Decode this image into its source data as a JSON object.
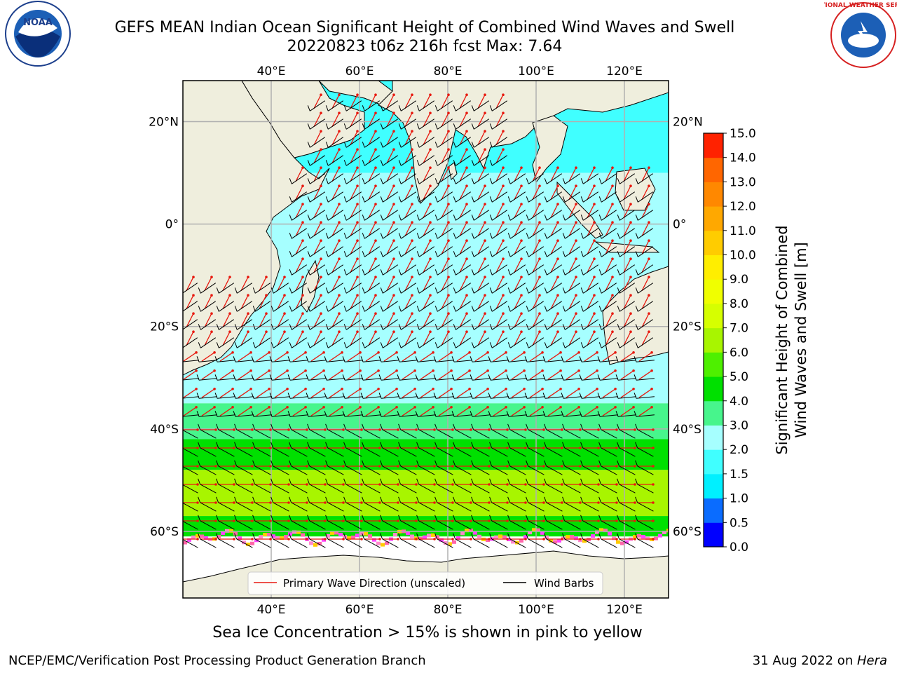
{
  "header": {
    "title_line1": "GEFS MEAN Indian Ocean Significant Height of Combined Wind Waves and Swell",
    "title_line2": "20220823 t06z 216h fcst   Max: 7.64"
  },
  "logos": {
    "left": {
      "icon": "noaa-logo-icon",
      "text": "NOAA",
      "ring_text": "NATIONAL OCEANIC AND ATMOSPHERIC ADMINISTRATION · U.S. DEPARTMENT OF COMMERCE"
    },
    "right": {
      "icon": "nws-logo-icon",
      "ring_text": "NATIONAL WEATHER SERVICE"
    }
  },
  "map": {
    "lon_range": [
      20,
      130
    ],
    "lat_range": [
      -73,
      28
    ],
    "lon_ticks": [
      {
        "value": 40,
        "label": "40°E"
      },
      {
        "value": 60,
        "label": "60°E"
      },
      {
        "value": 80,
        "label": "80°E"
      },
      {
        "value": 100,
        "label": "100°E"
      },
      {
        "value": 120,
        "label": "120°E"
      }
    ],
    "lat_ticks": [
      {
        "value": 20,
        "label": "20°N"
      },
      {
        "value": 0,
        "label": "0°"
      },
      {
        "value": -20,
        "label": "20°S"
      },
      {
        "value": -40,
        "label": "40°S"
      },
      {
        "value": -60,
        "label": "60°S"
      }
    ],
    "colors": {
      "land": "#efeedd",
      "grid": "#b0b0b0",
      "arrow": "#e8190f",
      "barb": "#000000"
    },
    "wave_height_bands_m": [
      {
        "lat_min": 10,
        "lat_max": 28,
        "value": 1.8
      },
      {
        "lat_min": -25,
        "lat_max": 10,
        "value": 2.3
      },
      {
        "lat_min": -35,
        "lat_max": -25,
        "value": 2.8
      },
      {
        "lat_min": -42,
        "lat_max": -35,
        "value": 3.6
      },
      {
        "lat_min": -48,
        "lat_max": -42,
        "value": 4.5
      },
      {
        "lat_min": -57,
        "lat_max": -48,
        "value": 6.2
      },
      {
        "lat_min": -61,
        "lat_max": -57,
        "value": 4.6
      }
    ],
    "max_value": 7.64
  },
  "legend": {
    "items": [
      {
        "label": "Primary Wave Direction (unscaled)",
        "color": "#e8190f"
      },
      {
        "label": "Wind Barbs",
        "color": "#000000"
      }
    ]
  },
  "colorbar": {
    "label_line1": "Significant Height of Combined",
    "label_line2": "Wind Waves and Swell [m]",
    "ticks": [
      "0.0",
      "0.5",
      "1.0",
      "1.5",
      "2.0",
      "3.0",
      "4.0",
      "5.0",
      "6.0",
      "7.0",
      "8.0",
      "9.0",
      "10.0",
      "11.0",
      "12.0",
      "13.0",
      "14.0",
      "15.0"
    ],
    "colors": [
      "#0000ff",
      "#0a6cff",
      "#00f0ff",
      "#40ffff",
      "#a6ffff",
      "#47f58c",
      "#00e000",
      "#4ef000",
      "#a8f500",
      "#d6ff00",
      "#f0ff00",
      "#ffee00",
      "#ffcc00",
      "#ffa800",
      "#ff8800",
      "#ff6600",
      "#ff2200"
    ]
  },
  "footer": {
    "ice_note": "Sea Ice Concentration > 15% is shown in pink to yellow",
    "left": "NCEP/EMC/Verification Post Processing Product Generation Branch",
    "right_prefix": "31 Aug 2022 on ",
    "right_host": "Hera"
  }
}
